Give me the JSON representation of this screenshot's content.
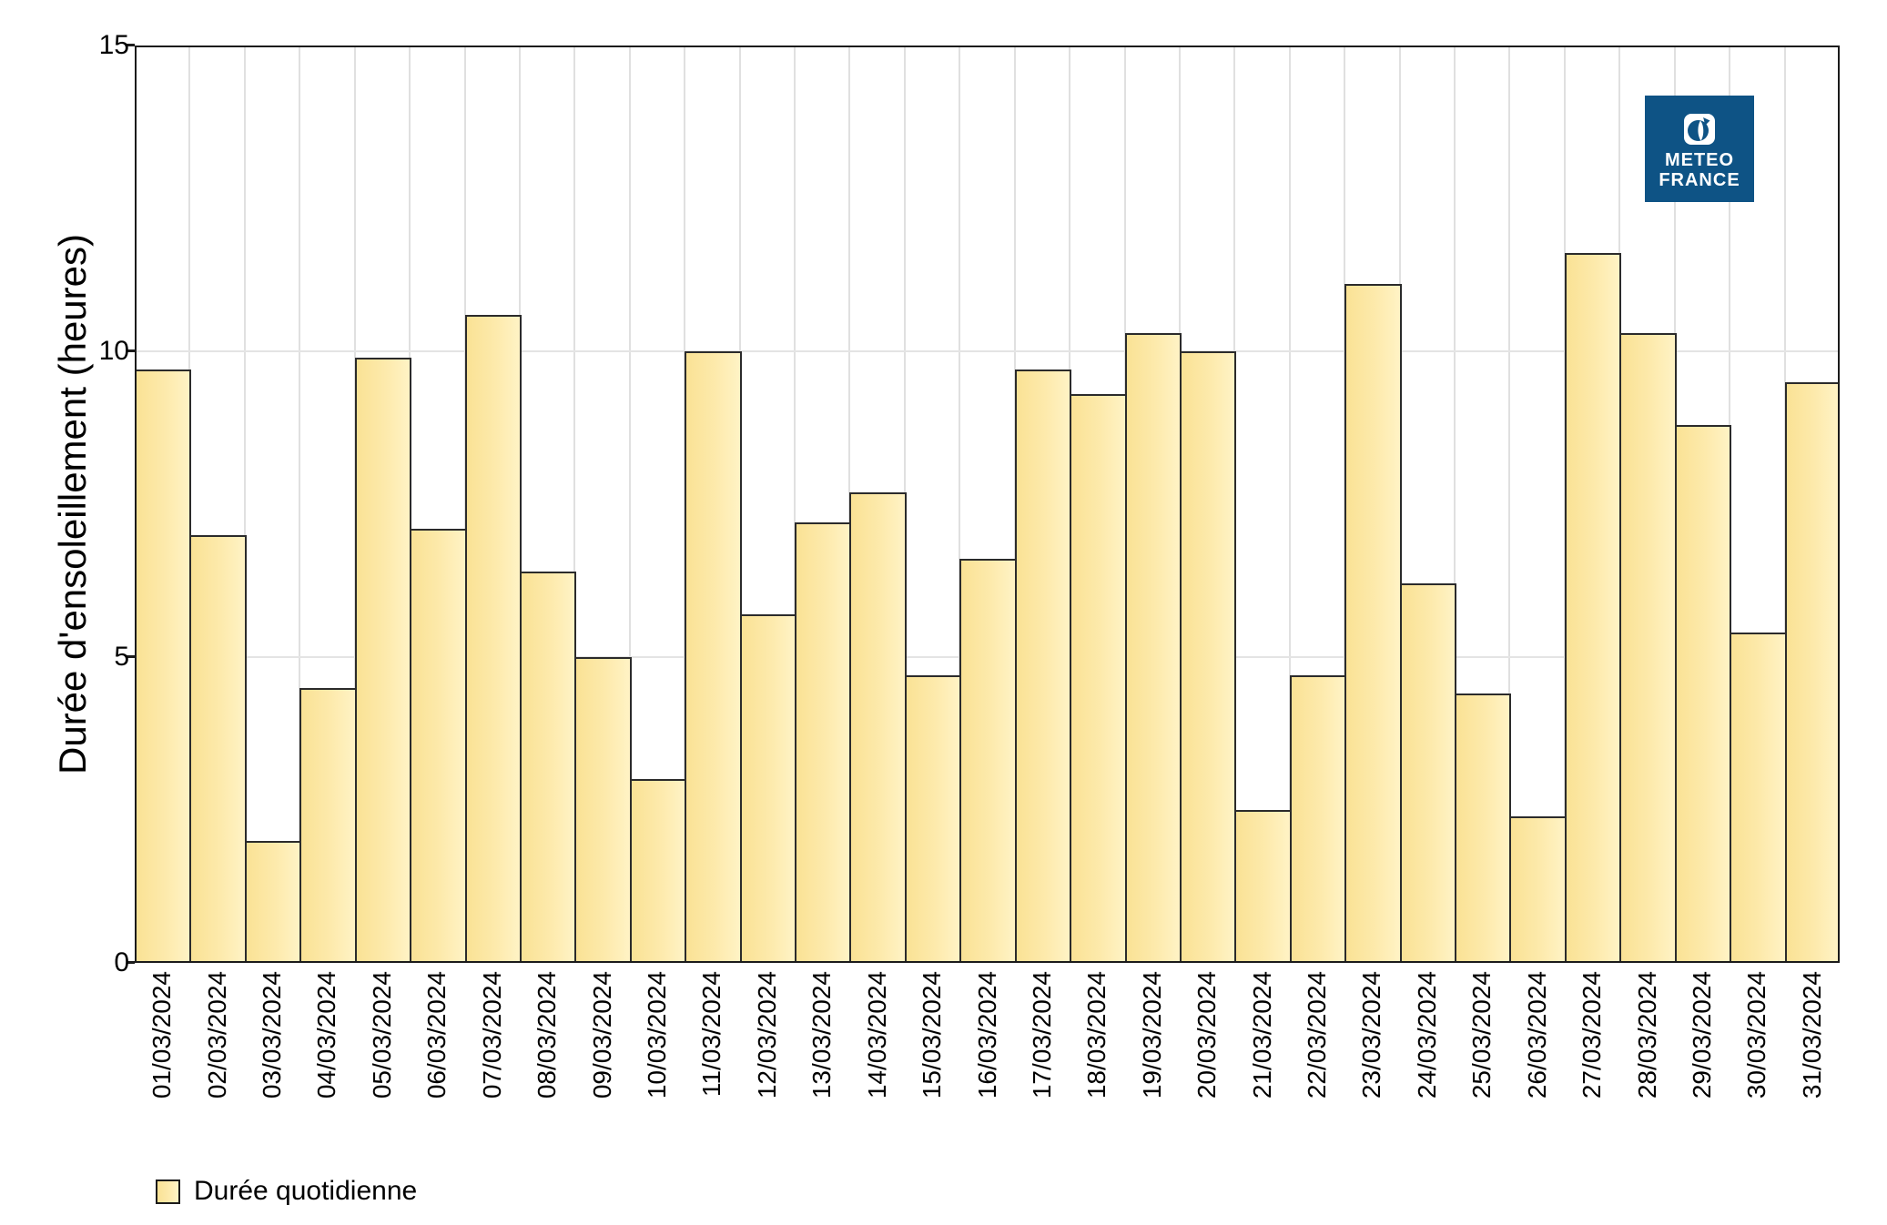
{
  "chart_data": {
    "type": "bar",
    "categories": [
      "01/03/2024",
      "02/03/2024",
      "03/03/2024",
      "04/03/2024",
      "05/03/2024",
      "06/03/2024",
      "07/03/2024",
      "08/03/2024",
      "09/03/2024",
      "10/03/2024",
      "11/03/2024",
      "12/03/2024",
      "13/03/2024",
      "14/03/2024",
      "15/03/2024",
      "16/03/2024",
      "17/03/2024",
      "18/03/2024",
      "19/03/2024",
      "20/03/2024",
      "21/03/2024",
      "22/03/2024",
      "23/03/2024",
      "24/03/2024",
      "25/03/2024",
      "26/03/2024",
      "27/03/2024",
      "28/03/2024",
      "29/03/2024",
      "30/03/2024",
      "31/03/2024"
    ],
    "values": [
      9.7,
      7.0,
      2.0,
      4.5,
      9.9,
      7.1,
      10.6,
      6.4,
      5.0,
      3.0,
      10.0,
      5.7,
      7.2,
      7.7,
      4.7,
      6.6,
      9.7,
      9.3,
      10.3,
      10.0,
      2.5,
      4.7,
      11.1,
      6.2,
      4.4,
      2.4,
      11.6,
      10.3,
      8.8,
      5.4,
      9.5
    ],
    "xlabel": "",
    "ylabel": "Durée d'ensoleillement (heures)",
    "ylim": [
      0,
      15
    ],
    "yticks": [
      0,
      5,
      10,
      15
    ],
    "grid": "vertical gridlines at category boundaries, horizontal gridlines at 5 and 10",
    "legend": {
      "label": "Durée quotidienne",
      "position": "bottom-left"
    },
    "bar_fill_left": "#FAE295",
    "bar_fill_mid": "#FDEAAC",
    "bar_fill_right": "#FFF3C5",
    "bar_border": "#2B2B2B"
  },
  "logo": {
    "line1": "METEO",
    "line2": "FRANCE",
    "bg_color": "#0E5385"
  }
}
